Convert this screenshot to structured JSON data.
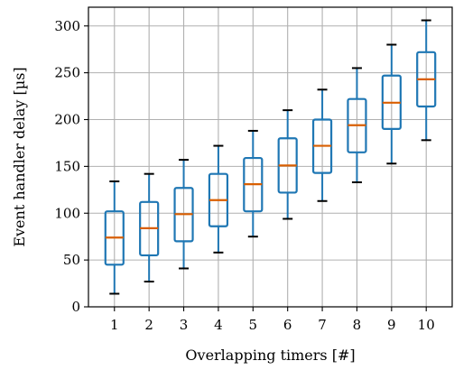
{
  "chart_data": {
    "type": "box",
    "xlabel": "Overlapping timers [#]",
    "ylabel": "Event handler delay [µs]",
    "ylim": [
      0,
      320
    ],
    "yticks": [
      0,
      50,
      100,
      150,
      200,
      250,
      300
    ],
    "grid": true,
    "categories": [
      "1",
      "2",
      "3",
      "4",
      "5",
      "6",
      "7",
      "8",
      "9",
      "10"
    ],
    "boxes": [
      {
        "whisker_low": 14,
        "q1": 45,
        "median": 74,
        "q3": 102,
        "whisker_high": 134
      },
      {
        "whisker_low": 27,
        "q1": 55,
        "median": 84,
        "q3": 112,
        "whisker_high": 142
      },
      {
        "whisker_low": 41,
        "q1": 70,
        "median": 99,
        "q3": 127,
        "whisker_high": 157
      },
      {
        "whisker_low": 58,
        "q1": 86,
        "median": 114,
        "q3": 142,
        "whisker_high": 172
      },
      {
        "whisker_low": 75,
        "q1": 102,
        "median": 131,
        "q3": 159,
        "whisker_high": 188
      },
      {
        "whisker_low": 94,
        "q1": 122,
        "median": 151,
        "q3": 180,
        "whisker_high": 210
      },
      {
        "whisker_low": 113,
        "q1": 143,
        "median": 172,
        "q3": 200,
        "whisker_high": 232
      },
      {
        "whisker_low": 133,
        "q1": 165,
        "median": 194,
        "q3": 222,
        "whisker_high": 255
      },
      {
        "whisker_low": 153,
        "q1": 190,
        "median": 218,
        "q3": 247,
        "whisker_high": 280
      },
      {
        "whisker_low": 178,
        "q1": 214,
        "median": 243,
        "q3": 272,
        "whisker_high": 306
      }
    ],
    "colors": {
      "box": "#1f77b4",
      "median": "#d95f02",
      "whisker_cap": "#000000",
      "grid": "#b0b0b0"
    }
  }
}
